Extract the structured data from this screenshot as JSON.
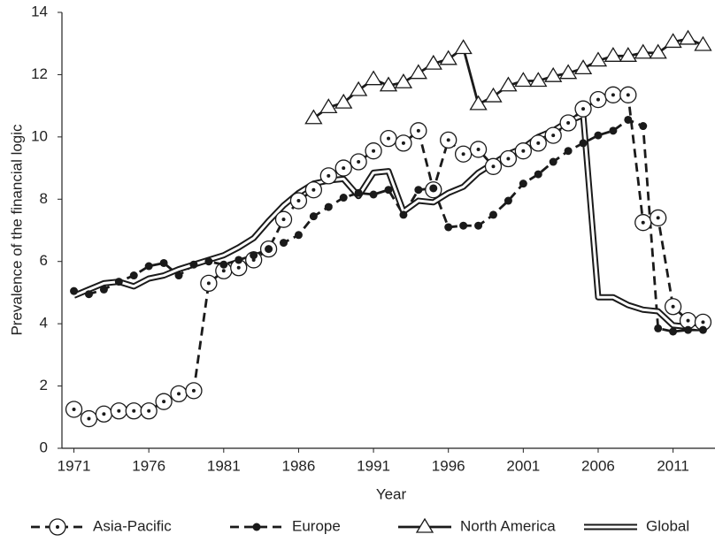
{
  "chart_data": {
    "type": "line",
    "xlabel": "Year",
    "ylabel": "Prevalence of the financial logic",
    "x": [
      1971,
      1972,
      1973,
      1974,
      1975,
      1976,
      1977,
      1978,
      1979,
      1980,
      1981,
      1982,
      1983,
      1984,
      1985,
      1986,
      1987,
      1988,
      1989,
      1990,
      1991,
      1992,
      1993,
      1994,
      1995,
      1996,
      1997,
      1998,
      1999,
      2000,
      2001,
      2002,
      2003,
      2004,
      2005,
      2006,
      2007,
      2008,
      2009,
      2010,
      2011,
      2012,
      2013
    ],
    "xlim": [
      1970.2,
      2013.8
    ],
    "xticks": [
      1971,
      1976,
      1981,
      1986,
      1991,
      1996,
      2001,
      2006,
      2011
    ],
    "ylim": [
      0,
      14
    ],
    "yticks": [
      0,
      2,
      4,
      6,
      8,
      10,
      12,
      14
    ],
    "series": [
      {
        "name": "Asia-Pacific",
        "color": "#1a1a1a",
        "dashed": true,
        "double": false,
        "marker": "open-circle",
        "values": [
          1.25,
          0.95,
          1.1,
          1.2,
          1.2,
          1.2,
          1.5,
          1.75,
          1.85,
          5.3,
          5.7,
          5.8,
          6.05,
          6.4,
          7.35,
          7.95,
          8.3,
          8.75,
          9.0,
          9.2,
          9.55,
          9.95,
          9.8,
          10.2,
          8.3,
          9.9,
          9.45,
          9.6,
          9.05,
          9.3,
          9.55,
          9.8,
          10.05,
          10.45,
          10.9,
          11.2,
          11.35,
          11.35,
          7.25,
          7.4,
          4.55,
          4.1,
          4.05
        ]
      },
      {
        "name": "Europe",
        "color": "#1a1a1a",
        "dashed": true,
        "double": false,
        "marker": "dot",
        "values": [
          5.05,
          4.95,
          5.1,
          5.35,
          5.55,
          5.85,
          5.95,
          5.55,
          5.9,
          6.0,
          5.9,
          6.05,
          6.2,
          6.4,
          6.6,
          6.85,
          7.45,
          7.75,
          8.05,
          8.2,
          8.15,
          8.3,
          7.5,
          8.3,
          8.35,
          7.1,
          7.15,
          7.15,
          7.5,
          7.95,
          8.5,
          8.8,
          9.2,
          9.55,
          9.8,
          10.05,
          10.2,
          10.55,
          10.35,
          3.85,
          3.75,
          3.8,
          3.8
        ]
      },
      {
        "name": "North America",
        "color": "#1a1a1a",
        "dashed": false,
        "double": false,
        "marker": "triangle",
        "values": [
          null,
          null,
          null,
          null,
          null,
          null,
          null,
          null,
          null,
          null,
          null,
          null,
          null,
          null,
          null,
          null,
          10.6,
          10.95,
          11.1,
          11.5,
          11.85,
          11.65,
          11.75,
          12.05,
          12.35,
          12.5,
          12.85,
          11.05,
          11.3,
          11.65,
          11.8,
          11.8,
          11.95,
          12.05,
          12.2,
          12.45,
          12.6,
          12.6,
          12.7,
          12.7,
          13.05,
          13.15,
          12.95
        ]
      },
      {
        "name": "Global",
        "color": "#1a1a1a",
        "dashed": false,
        "double": true,
        "marker": "none",
        "values": [
          4.9,
          5.1,
          5.3,
          5.35,
          5.2,
          5.45,
          5.55,
          5.75,
          5.9,
          6.05,
          6.2,
          6.45,
          6.75,
          7.3,
          7.8,
          8.2,
          8.5,
          8.6,
          8.65,
          8.1,
          8.85,
          8.9,
          7.6,
          7.95,
          7.9,
          8.2,
          8.4,
          8.85,
          9.15,
          9.45,
          9.65,
          10.0,
          10.2,
          10.5,
          10.7,
          4.85,
          4.85,
          4.6,
          4.45,
          4.4,
          3.95,
          3.9,
          3.85
        ]
      }
    ]
  }
}
